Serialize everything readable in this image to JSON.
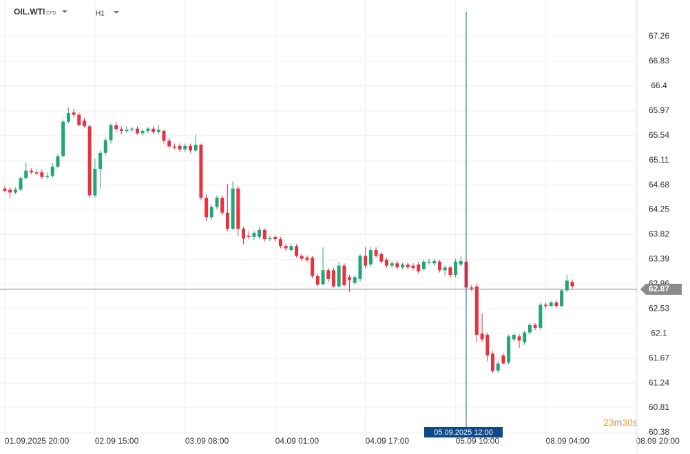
{
  "header": {
    "symbol": "OIL.WTI",
    "kind": "CFD",
    "interval": "H1"
  },
  "countdown": [
    "23",
    "m",
    "30",
    "s"
  ],
  "chart_data": {
    "type": "candlestick",
    "up_color": "#21a67a",
    "down_color": "#e8323f",
    "ylim": [
      60.38,
      67.69
    ],
    "yticks": [
      67.26,
      66.83,
      66.4,
      65.97,
      65.54,
      65.11,
      64.68,
      64.25,
      63.82,
      63.39,
      62.96,
      62.53,
      62.1,
      61.67,
      61.24,
      60.81,
      60.38
    ],
    "xlim": [
      -0.9,
      119.2
    ],
    "xticks": [
      {
        "value": 0,
        "label": "01.09.2025 20:00"
      },
      {
        "value": 17,
        "label": "02.09 15:00"
      },
      {
        "value": 34,
        "label": "03.09 08:00"
      },
      {
        "value": 51,
        "label": "04.09 01:00"
      },
      {
        "value": 68,
        "label": "04.09 17:00"
      },
      {
        "value": 85,
        "label": "05.09 10:00"
      },
      {
        "value": 102,
        "label": "08.09 04:00"
      },
      {
        "value": 119,
        "label": "08.09 20:00"
      }
    ],
    "grid": true,
    "current_price": 62.87,
    "crosshair": {
      "x": 87,
      "label": "05.09.2025 12:00"
    },
    "ohlc": [
      [
        64.62,
        64.66,
        64.55,
        64.58
      ],
      [
        64.6,
        64.64,
        64.45,
        64.55
      ],
      [
        64.55,
        64.64,
        64.52,
        64.6
      ],
      [
        64.6,
        64.83,
        64.58,
        64.8
      ],
      [
        64.8,
        65.07,
        64.78,
        64.93
      ],
      [
        64.93,
        64.97,
        64.87,
        64.9
      ],
      [
        64.9,
        64.94,
        64.85,
        64.88
      ],
      [
        64.9,
        64.95,
        64.78,
        64.82
      ],
      [
        64.82,
        64.9,
        64.78,
        64.84
      ],
      [
        64.84,
        65.06,
        64.8,
        65.0
      ],
      [
        65.0,
        65.22,
        64.98,
        65.18
      ],
      [
        65.18,
        65.82,
        65.16,
        65.78
      ],
      [
        65.78,
        66.03,
        65.75,
        65.93
      ],
      [
        65.94,
        66.0,
        65.85,
        65.9
      ],
      [
        65.9,
        65.94,
        65.7,
        65.72
      ],
      [
        65.8,
        65.85,
        65.68,
        65.7
      ],
      [
        65.7,
        65.72,
        64.46,
        64.5
      ],
      [
        64.5,
        65.14,
        64.46,
        64.96
      ],
      [
        64.96,
        65.28,
        64.62,
        65.24
      ],
      [
        65.24,
        65.5,
        65.2,
        65.46
      ],
      [
        65.46,
        65.75,
        65.4,
        65.72
      ],
      [
        65.72,
        65.78,
        65.6,
        65.65
      ],
      [
        65.65,
        65.7,
        65.56,
        65.62
      ],
      [
        65.62,
        65.7,
        65.58,
        65.64
      ],
      [
        65.64,
        65.69,
        65.6,
        65.66
      ],
      [
        65.66,
        65.7,
        65.55,
        65.58
      ],
      [
        65.58,
        65.66,
        65.54,
        65.62
      ],
      [
        65.62,
        65.69,
        65.58,
        65.66
      ],
      [
        65.66,
        65.7,
        65.56,
        65.6
      ],
      [
        65.6,
        65.72,
        65.56,
        65.64
      ],
      [
        65.62,
        65.65,
        65.4,
        65.45
      ],
      [
        65.45,
        65.5,
        65.32,
        65.35
      ],
      [
        65.35,
        65.4,
        65.3,
        65.33
      ],
      [
        65.36,
        65.4,
        65.26,
        65.3
      ],
      [
        65.3,
        65.4,
        65.25,
        65.36
      ],
      [
        65.36,
        65.4,
        65.24,
        65.28
      ],
      [
        65.28,
        65.56,
        65.24,
        65.38
      ],
      [
        65.38,
        65.4,
        64.42,
        64.46
      ],
      [
        64.46,
        64.52,
        64.05,
        64.12
      ],
      [
        64.12,
        64.34,
        64.08,
        64.3
      ],
      [
        64.3,
        64.5,
        64.26,
        64.46
      ],
      [
        64.46,
        64.5,
        64.16,
        64.2
      ],
      [
        64.2,
        64.7,
        63.88,
        63.92
      ],
      [
        63.92,
        64.74,
        63.9,
        64.62
      ],
      [
        64.62,
        64.66,
        63.8,
        63.92
      ],
      [
        63.92,
        63.96,
        63.65,
        63.75
      ],
      [
        63.8,
        63.88,
        63.74,
        63.78
      ],
      [
        63.78,
        63.88,
        63.72,
        63.85
      ],
      [
        63.78,
        63.95,
        63.74,
        63.9
      ],
      [
        63.9,
        63.93,
        63.7,
        63.74
      ],
      [
        63.74,
        63.8,
        63.7,
        63.76
      ],
      [
        63.78,
        63.8,
        63.7,
        63.74
      ],
      [
        63.74,
        63.78,
        63.58,
        63.62
      ],
      [
        63.62,
        63.66,
        63.54,
        63.58
      ],
      [
        63.55,
        63.66,
        63.52,
        63.62
      ],
      [
        63.62,
        63.65,
        63.42,
        63.45
      ],
      [
        63.45,
        63.48,
        63.36,
        63.4
      ],
      [
        63.42,
        63.46,
        63.34,
        63.38
      ],
      [
        63.42,
        63.45,
        63.06,
        63.1
      ],
      [
        63.1,
        63.14,
        62.92,
        62.95
      ],
      [
        62.96,
        63.6,
        62.94,
        63.2
      ],
      [
        63.2,
        63.24,
        63.0,
        63.05
      ],
      [
        63.2,
        63.24,
        62.9,
        62.92
      ],
      [
        62.92,
        63.34,
        62.9,
        63.28
      ],
      [
        63.28,
        63.32,
        62.92,
        62.94
      ],
      [
        63.08,
        63.12,
        62.82,
        63.03
      ],
      [
        62.98,
        63.12,
        62.95,
        63.08
      ],
      [
        63.05,
        63.48,
        63.0,
        63.45
      ],
      [
        63.45,
        63.6,
        63.24,
        63.28
      ],
      [
        63.3,
        63.62,
        63.26,
        63.55
      ],
      [
        63.55,
        63.6,
        63.42,
        63.45
      ],
      [
        63.48,
        63.52,
        63.32,
        63.35
      ],
      [
        63.38,
        63.42,
        63.24,
        63.28
      ],
      [
        63.28,
        63.36,
        63.24,
        63.32
      ],
      [
        63.32,
        63.36,
        63.22,
        63.25
      ],
      [
        63.25,
        63.33,
        63.22,
        63.3
      ],
      [
        63.3,
        63.34,
        63.22,
        63.25
      ],
      [
        63.28,
        63.32,
        63.2,
        63.24
      ],
      [
        63.3,
        63.34,
        63.14,
        63.18
      ],
      [
        63.22,
        63.38,
        63.2,
        63.35
      ],
      [
        63.33,
        63.4,
        63.3,
        63.35
      ],
      [
        63.32,
        63.4,
        63.28,
        63.36
      ],
      [
        63.35,
        63.38,
        63.16,
        63.2
      ],
      [
        63.2,
        63.28,
        63.1,
        63.25
      ],
      [
        63.25,
        63.28,
        63.06,
        63.12
      ],
      [
        63.12,
        63.4,
        63.08,
        63.35
      ],
      [
        63.3,
        63.45,
        63.26,
        63.36
      ],
      [
        63.35,
        63.38,
        62.86,
        62.9
      ],
      [
        62.9,
        62.94,
        62.84,
        62.88
      ],
      [
        62.92,
        62.96,
        61.95,
        62.08
      ],
      [
        62.1,
        62.45,
        61.96,
        62.0
      ],
      [
        62.08,
        62.12,
        61.62,
        61.72
      ],
      [
        61.75,
        61.8,
        61.42,
        61.45
      ],
      [
        61.46,
        61.62,
        61.42,
        61.58
      ],
      [
        61.72,
        61.76,
        61.56,
        61.58
      ],
      [
        61.6,
        62.08,
        61.56,
        62.05
      ],
      [
        62.0,
        62.1,
        61.96,
        62.08
      ],
      [
        62.05,
        62.09,
        61.85,
        61.98
      ],
      [
        61.95,
        62.15,
        61.9,
        62.12
      ],
      [
        62.12,
        62.28,
        62.08,
        62.25
      ],
      [
        62.25,
        62.28,
        62.16,
        62.2
      ],
      [
        62.2,
        62.64,
        62.16,
        62.6
      ],
      [
        62.6,
        62.64,
        62.54,
        62.58
      ],
      [
        62.58,
        62.66,
        62.56,
        62.64
      ],
      [
        62.64,
        62.68,
        62.55,
        62.58
      ],
      [
        62.58,
        62.88,
        62.56,
        62.85
      ],
      [
        62.85,
        63.12,
        62.82,
        63.02
      ],
      [
        63.0,
        63.04,
        62.88,
        62.92
      ]
    ]
  }
}
